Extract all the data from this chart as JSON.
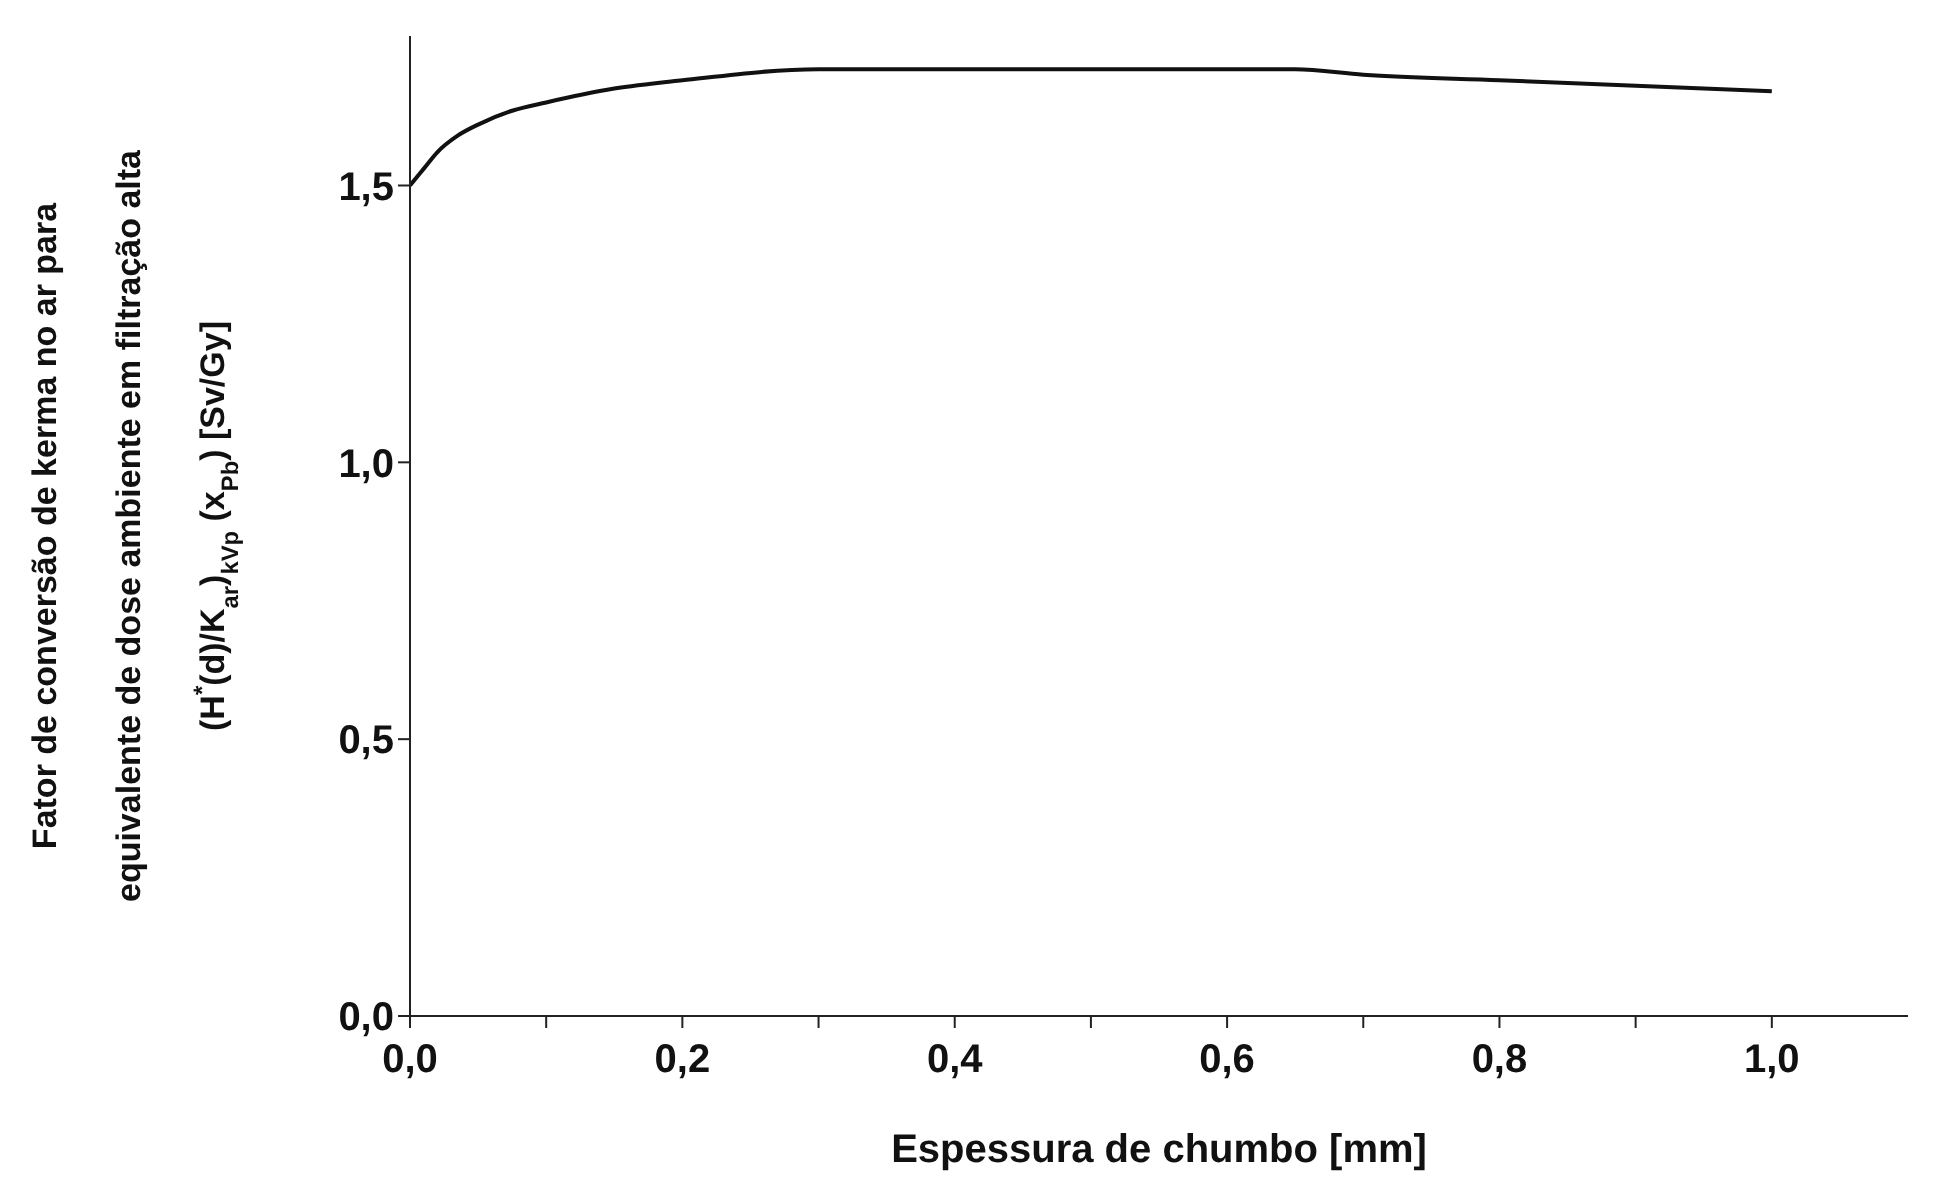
{
  "chart_data": {
    "type": "line",
    "xlabel": "Espessura de chumbo [mm]",
    "ylabel": "Fator de conversão de kerma no ar para\nequivalente de dose ambiente em filtração alta\n(H$^{*}$(d)/K$_{ar}$)$_{kVp}$ (x$_{Pb}$)     [Sv/Gy]",
    "x": [
      0,
      0.01,
      0.02,
      0.035,
      0.05,
      0.075,
      0.1,
      0.15,
      0.2,
      0.3,
      0.4,
      0.5,
      0.6,
      0.65,
      0.7,
      0.8,
      0.9,
      1.0
    ],
    "series": [
      {
        "color": "#111111",
        "values": [
          1.5,
          1.53,
          1.56,
          1.59,
          1.61,
          1.635,
          1.65,
          1.675,
          1.69,
          1.71,
          1.71,
          1.71,
          1.71,
          1.71,
          1.7,
          1.69,
          1.68,
          1.67
        ]
      }
    ],
    "xlim": [
      0,
      1.1
    ],
    "ylim": [
      0,
      1.77
    ],
    "xticks": [
      {
        "value": 0,
        "label": "0,0"
      },
      {
        "value": 0.1,
        "label": null
      },
      {
        "value": 0.2,
        "label": "0,2"
      },
      {
        "value": 0.3,
        "label": null
      },
      {
        "value": 0.4,
        "label": "0,4"
      },
      {
        "value": 0.5,
        "label": null
      },
      {
        "value": 0.6,
        "label": "0,6"
      },
      {
        "value": 0.7,
        "label": null
      },
      {
        "value": 0.8,
        "label": "0,8"
      },
      {
        "value": 0.9,
        "label": null
      },
      {
        "value": 1.0,
        "label": "1,0"
      }
    ],
    "yticks": [
      {
        "value": 0,
        "label": "0,0"
      },
      {
        "value": 0.5,
        "label": "0,5"
      },
      {
        "value": 1.0,
        "label": "1,0"
      },
      {
        "value": 1.5,
        "label": "1,5"
      }
    ],
    "grid": false,
    "legend": false,
    "marker": "none",
    "line_style": "solid"
  }
}
